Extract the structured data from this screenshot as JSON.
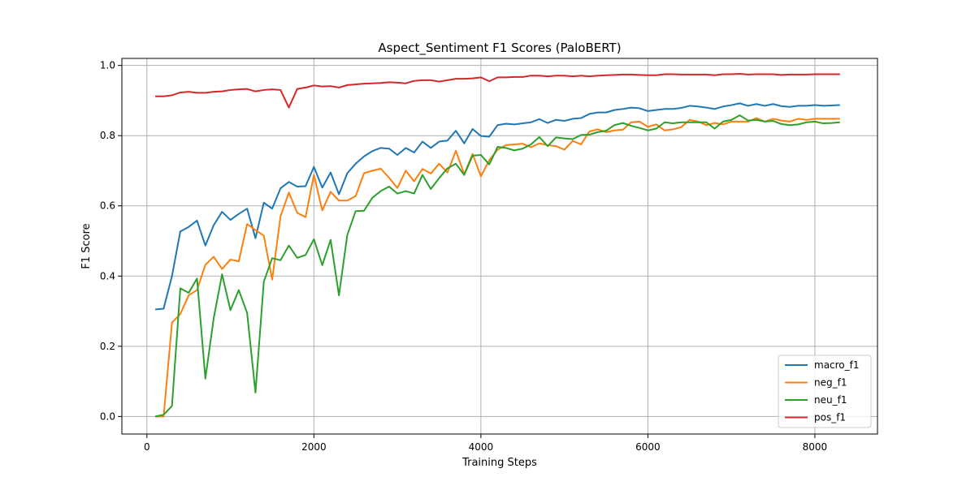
{
  "chart_data": {
    "type": "line",
    "title": "Aspect_Sentiment F1 Scores (PaloBERT)",
    "xlabel": "Training Steps",
    "ylabel": "F1 Score",
    "xlim": [
      -300,
      8750
    ],
    "ylim": [
      -0.05,
      1.02
    ],
    "xticks": [
      0,
      2000,
      4000,
      6000,
      8000
    ],
    "xtick_labels": [
      "0",
      "2000",
      "4000",
      "6000",
      "8000"
    ],
    "yticks": [
      0.0,
      0.2,
      0.4,
      0.6,
      0.8,
      1.0
    ],
    "ytick_labels": [
      "0.0",
      "0.2",
      "0.4",
      "0.6",
      "0.8",
      "1.0"
    ],
    "grid": true,
    "legend_position": "lower-right",
    "x": [
      100,
      200,
      300,
      400,
      500,
      600,
      700,
      800,
      900,
      1000,
      1100,
      1200,
      1300,
      1400,
      1500,
      1600,
      1700,
      1800,
      1900,
      2000,
      2100,
      2200,
      2300,
      2400,
      2500,
      2600,
      2700,
      2800,
      2900,
      3000,
      3100,
      3200,
      3300,
      3400,
      3500,
      3600,
      3700,
      3800,
      3900,
      4000,
      4100,
      4200,
      4300,
      4400,
      4500,
      4600,
      4700,
      4800,
      4900,
      5000,
      5100,
      5200,
      5300,
      5400,
      5500,
      5600,
      5700,
      5800,
      5900,
      6000,
      6100,
      6200,
      6300,
      6400,
      6500,
      6600,
      6700,
      6800,
      6900,
      7000,
      7100,
      7200,
      7300,
      7400,
      7500,
      7600,
      7700,
      7800,
      7900,
      8000,
      8100,
      8200,
      8300
    ],
    "series": [
      {
        "name": "macro_f1",
        "color": "#1f77b4",
        "values": [
          0.305,
          0.307,
          0.4,
          0.527,
          0.54,
          0.558,
          0.487,
          0.545,
          0.583,
          0.56,
          0.577,
          0.592,
          0.508,
          0.609,
          0.592,
          0.65,
          0.668,
          0.655,
          0.656,
          0.711,
          0.652,
          0.695,
          0.633,
          0.693,
          0.72,
          0.741,
          0.756,
          0.765,
          0.763,
          0.745,
          0.765,
          0.752,
          0.783,
          0.765,
          0.783,
          0.786,
          0.814,
          0.778,
          0.819,
          0.799,
          0.797,
          0.83,
          0.834,
          0.832,
          0.835,
          0.838,
          0.847,
          0.836,
          0.845,
          0.842,
          0.848,
          0.85,
          0.862,
          0.866,
          0.866,
          0.873,
          0.876,
          0.88,
          0.878,
          0.87,
          0.873,
          0.876,
          0.876,
          0.879,
          0.885,
          0.883,
          0.88,
          0.876,
          0.883,
          0.887,
          0.892,
          0.885,
          0.89,
          0.885,
          0.89,
          0.884,
          0.882,
          0.885,
          0.885,
          0.887,
          0.885,
          0.886,
          0.887
        ]
      },
      {
        "name": "neg_f1",
        "color": "#ff7f0e",
        "values": [
          0.0,
          0.0,
          0.267,
          0.292,
          0.345,
          0.36,
          0.432,
          0.455,
          0.42,
          0.447,
          0.442,
          0.548,
          0.531,
          0.515,
          0.39,
          0.57,
          0.638,
          0.58,
          0.568,
          0.688,
          0.587,
          0.64,
          0.615,
          0.615,
          0.628,
          0.693,
          0.7,
          0.706,
          0.68,
          0.651,
          0.7,
          0.67,
          0.705,
          0.692,
          0.72,
          0.695,
          0.757,
          0.69,
          0.748,
          0.684,
          0.73,
          0.76,
          0.773,
          0.775,
          0.777,
          0.767,
          0.778,
          0.773,
          0.77,
          0.76,
          0.785,
          0.775,
          0.812,
          0.818,
          0.81,
          0.815,
          0.817,
          0.838,
          0.84,
          0.825,
          0.832,
          0.815,
          0.818,
          0.824,
          0.845,
          0.84,
          0.83,
          0.836,
          0.832,
          0.84,
          0.84,
          0.84,
          0.85,
          0.84,
          0.848,
          0.843,
          0.84,
          0.848,
          0.845,
          0.848,
          0.848,
          0.848,
          0.848
        ]
      },
      {
        "name": "neu_f1",
        "color": "#2ca02c",
        "values": [
          0.0,
          0.005,
          0.03,
          0.365,
          0.352,
          0.393,
          0.108,
          0.28,
          0.405,
          0.303,
          0.36,
          0.295,
          0.068,
          0.384,
          0.451,
          0.445,
          0.487,
          0.452,
          0.46,
          0.505,
          0.431,
          0.503,
          0.345,
          0.517,
          0.585,
          0.586,
          0.623,
          0.642,
          0.655,
          0.635,
          0.642,
          0.635,
          0.688,
          0.648,
          0.679,
          0.707,
          0.72,
          0.688,
          0.743,
          0.745,
          0.718,
          0.768,
          0.765,
          0.758,
          0.763,
          0.775,
          0.796,
          0.77,
          0.795,
          0.792,
          0.79,
          0.802,
          0.803,
          0.81,
          0.814,
          0.83,
          0.836,
          0.828,
          0.822,
          0.815,
          0.82,
          0.838,
          0.835,
          0.838,
          0.838,
          0.838,
          0.838,
          0.82,
          0.84,
          0.845,
          0.858,
          0.843,
          0.845,
          0.84,
          0.842,
          0.833,
          0.83,
          0.832,
          0.838,
          0.84,
          0.835,
          0.836,
          0.838
        ]
      },
      {
        "name": "pos_f1",
        "color": "#d62728",
        "values": [
          0.912,
          0.912,
          0.915,
          0.923,
          0.925,
          0.922,
          0.922,
          0.925,
          0.926,
          0.93,
          0.932,
          0.933,
          0.926,
          0.93,
          0.932,
          0.93,
          0.88,
          0.933,
          0.937,
          0.943,
          0.94,
          0.941,
          0.937,
          0.944,
          0.946,
          0.948,
          0.949,
          0.95,
          0.952,
          0.951,
          0.949,
          0.956,
          0.958,
          0.958,
          0.954,
          0.958,
          0.962,
          0.962,
          0.963,
          0.966,
          0.955,
          0.966,
          0.966,
          0.967,
          0.967,
          0.971,
          0.971,
          0.969,
          0.971,
          0.971,
          0.969,
          0.971,
          0.969,
          0.971,
          0.972,
          0.973,
          0.974,
          0.974,
          0.973,
          0.972,
          0.972,
          0.975,
          0.975,
          0.974,
          0.974,
          0.974,
          0.974,
          0.972,
          0.975,
          0.975,
          0.976,
          0.974,
          0.975,
          0.975,
          0.975,
          0.973,
          0.974,
          0.974,
          0.974,
          0.975,
          0.975,
          0.975,
          0.975
        ]
      }
    ]
  }
}
